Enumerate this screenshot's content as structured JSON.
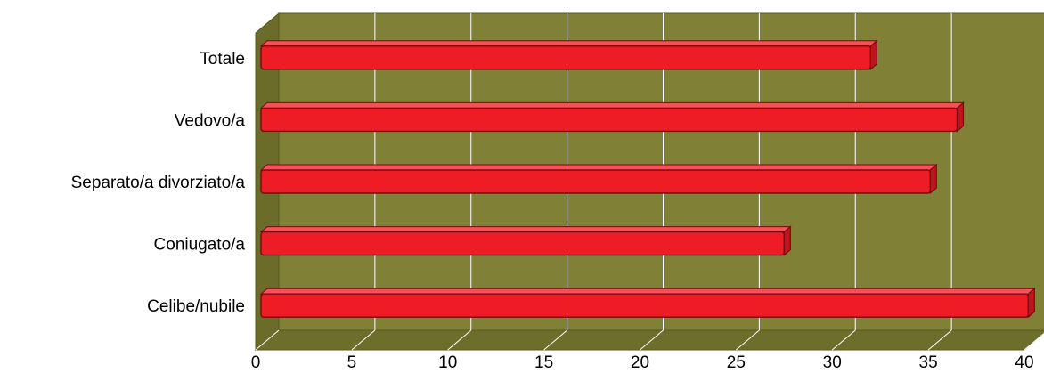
{
  "chart_data": {
    "type": "bar",
    "orientation": "horizontal",
    "style": "3d",
    "title": "",
    "xlabel": "",
    "ylabel": "",
    "categories": [
      "Celibe/nubile",
      "Coniugato/a",
      "Separato/a divorziato/a",
      "Vedovo/a",
      "Totale"
    ],
    "values": [
      40.2,
      27.5,
      35.1,
      36.5,
      32.0
    ],
    "xlim": [
      0,
      40
    ],
    "xticks": [
      "0",
      "5",
      "10",
      "15",
      "20",
      "25",
      "30",
      "35",
      "40"
    ],
    "grid": true,
    "legend": "none",
    "colors": {
      "bar": "#ee1c25",
      "bar_edge": "#7a0a12",
      "bar_side": "#c0141c",
      "bar_top": "#f65058",
      "plot_back": "#808036",
      "plot_floor": "#6e6e2c",
      "plot_wall": "#6b6b2a",
      "gridline": "#ffffff"
    }
  }
}
